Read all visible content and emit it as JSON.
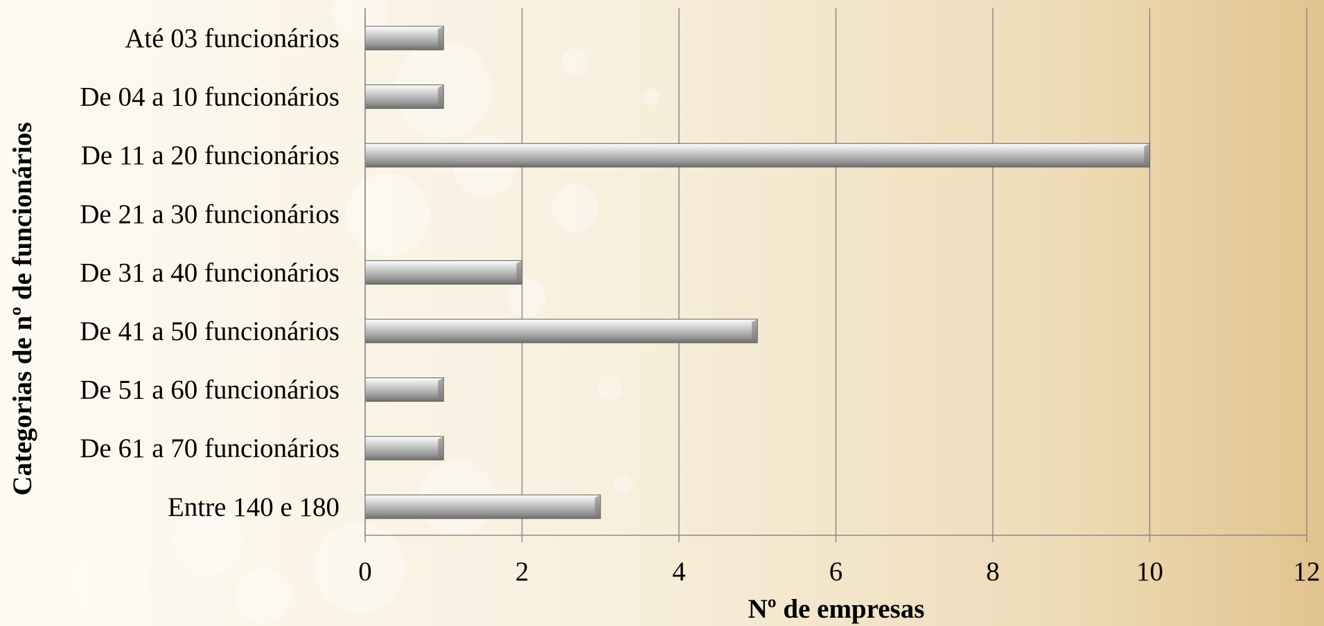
{
  "chart_data": {
    "type": "bar",
    "orientation": "horizontal",
    "categories": [
      "Até 03 funcionários",
      "De 04 a 10 funcionários",
      "De 11 a 20 funcionários",
      "De 21 a 30 funcionários",
      "De 31 a 40 funcionários",
      "De 41 a 50 funcionários",
      "De 51 a 60 funcionários",
      "De 61 a 70 funcionários",
      "Entre 140 e 180"
    ],
    "values": [
      1,
      1,
      10,
      0,
      2,
      5,
      1,
      1,
      3
    ],
    "xlabel": "Nº de empresas",
    "ylabel": "Categorias de nº de funcionários",
    "xlim": [
      0,
      12
    ],
    "xticks": [
      "0",
      "2",
      "4",
      "6",
      "8",
      "10",
      "12"
    ],
    "grid": "vertical",
    "bar_color": "#9a9a9a",
    "grid_color": "#8a8a8a"
  }
}
